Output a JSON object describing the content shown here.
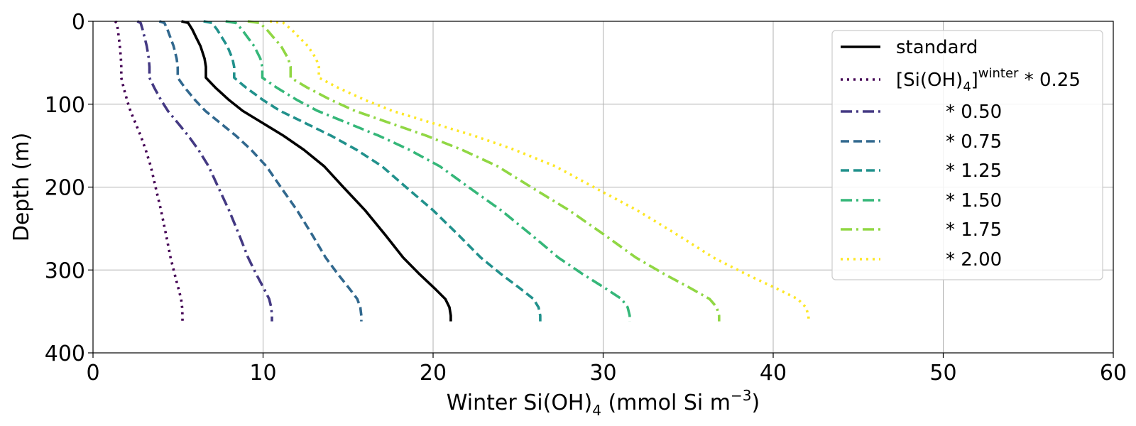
{
  "chart_data": {
    "type": "line",
    "xlabel": "Winter Si(OH)",
    "xlabel_sub": "4",
    "xlabel_unit_a": " (mmol Si m",
    "xlabel_unit_sup": "−3",
    "xlabel_unit_b": ")",
    "ylabel": "Depth (m)",
    "xlim": [
      0,
      60
    ],
    "ylim": [
      400,
      0
    ],
    "y_inverted": true,
    "x_ticks": [
      0,
      10,
      20,
      30,
      40,
      50,
      60
    ],
    "y_ticks": [
      0,
      100,
      200,
      300,
      400
    ],
    "grid": true,
    "legend_placement": "top-right",
    "standard_profile": [
      [
        6.5,
        0
      ],
      [
        7.0,
        2
      ],
      [
        7.3,
        10
      ],
      [
        7.6,
        20
      ],
      [
        7.9,
        30
      ],
      [
        8.2,
        45
      ],
      [
        8.3,
        55
      ],
      [
        8.3,
        68
      ],
      [
        9.0,
        80
      ],
      [
        10.0,
        95
      ],
      [
        11.0,
        108
      ],
      [
        12.5,
        123
      ],
      [
        14.0,
        138
      ],
      [
        15.5,
        155
      ],
      [
        17.0,
        175
      ],
      [
        18.4,
        200
      ],
      [
        20.0,
        228
      ],
      [
        21.5,
        258
      ],
      [
        22.8,
        285
      ],
      [
        24.0,
        305
      ],
      [
        25.1,
        322
      ],
      [
        25.9,
        335
      ],
      [
        26.2,
        345
      ],
      [
        26.3,
        355
      ],
      [
        26.3,
        362
      ]
    ],
    "series": [
      {
        "name": "standard",
        "scale": 1.0,
        "color": "#000000",
        "dash": "solid"
      },
      {
        "name": "[Si(OH)4]winter * 0.25",
        "scale": 0.25,
        "color": "#440154",
        "dash": "dotted"
      },
      {
        "name": "* 0.50",
        "scale": 0.5,
        "color": "#443983",
        "dash": "dashdot"
      },
      {
        "name": "* 0.75",
        "scale": 0.75,
        "color": "#31688e",
        "dash": "dashed"
      },
      {
        "name": "* 1.25",
        "scale": 1.25,
        "color": "#21918c",
        "dash": "dashed"
      },
      {
        "name": "* 1.50",
        "scale": 1.5,
        "color": "#35b779",
        "dash": "dashdot"
      },
      {
        "name": "* 1.75",
        "scale": 1.75,
        "color": "#90d743",
        "dash": "dashdot"
      },
      {
        "name": "* 2.00",
        "scale": 2.0,
        "color": "#fde725",
        "dash": "dotted"
      }
    ]
  },
  "legend": {
    "standard": "standard",
    "first_base": "[Si(OH)",
    "first_sub": "4",
    "first_close": "]",
    "first_sup": "winter",
    "first_tail": " * 0.25",
    "rest": [
      "* 0.50",
      "* 0.75",
      "* 1.25",
      "* 1.50",
      "* 1.75",
      "* 2.00"
    ]
  }
}
